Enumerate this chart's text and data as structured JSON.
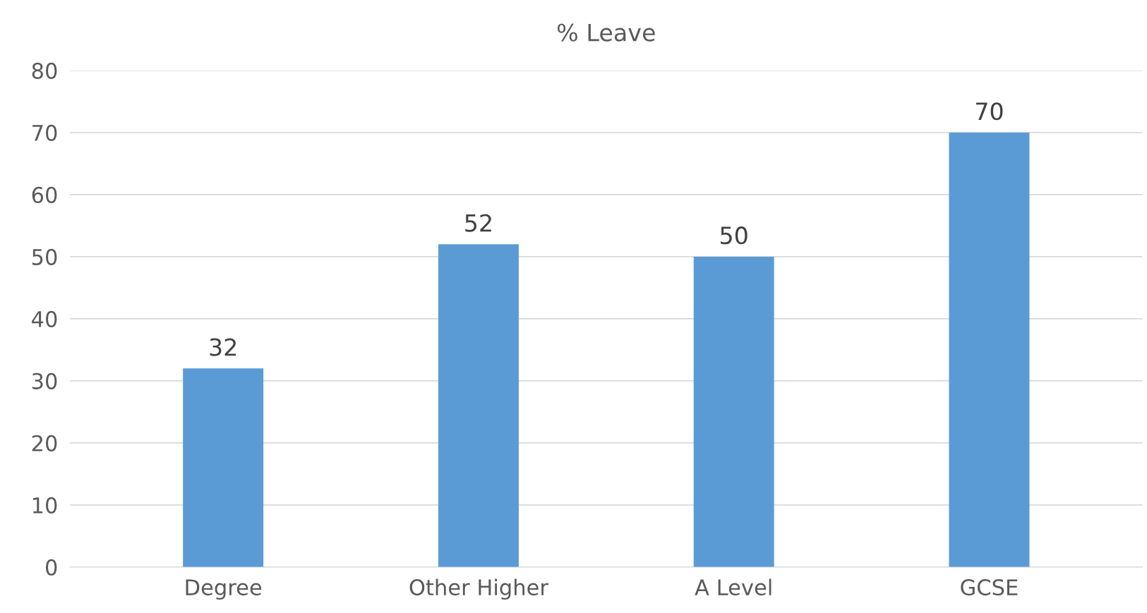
{
  "chart_data": {
    "type": "bar",
    "title": "% Leave",
    "categories": [
      "Degree",
      "Other Higher",
      "A Level",
      "GCSE"
    ],
    "values": [
      32,
      52,
      50,
      70
    ],
    "color": "#5b9bd5",
    "ylim": [
      0,
      80
    ],
    "yticks": [
      0,
      10,
      20,
      30,
      40,
      50,
      60,
      70,
      80
    ],
    "grid": "y",
    "data_labels": true
  }
}
